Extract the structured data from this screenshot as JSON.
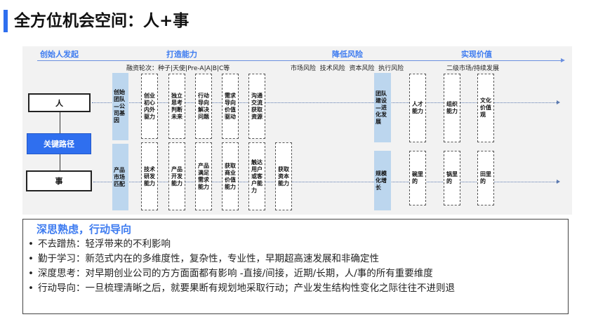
{
  "title": "全方位机会空间：人+事",
  "accent": "#2f6fef",
  "phases": [
    "创始人发起",
    "打造能力",
    "降低风险",
    "实现价值"
  ],
  "sublabels": {
    "financing": "融资轮次：种子|天使|Pre-A|A|B|C等",
    "risks": "市场风险  技术风险  资本风险  执行风险",
    "secondary": "二级市场/持续发展"
  },
  "nodes": {
    "person": "人",
    "key_path": "关键路径",
    "matter": "事"
  },
  "person_row": {
    "stage1": "创始团队—公司基因",
    "caps": [
      "创业初心内外驱力",
      "独立思考判断未来",
      "行动导向解决问题",
      "需求导向价值驱动",
      "沟通交流获取资源"
    ],
    "stage2": "团队建设—进化发展",
    "values": [
      "人才能力",
      "组织能力",
      "文化价值观"
    ]
  },
  "matter_row": {
    "stage1": "产品市场匹配",
    "caps": [
      "技术研发能力",
      "产品开发能力",
      "产品满足需求能力",
      "获取商业价值能力",
      "触达用户或客户能力",
      "获取资本能力"
    ],
    "stage2": "规模化增长",
    "values": [
      "碗里的",
      "锅里的",
      "田里的"
    ]
  },
  "summary": {
    "heading": "深思熟虑，行动导向",
    "bullets": [
      "不去蹭热：轻浮带来的不利影响",
      "勤于学习：新范式内在的多维度性，复杂性，专业性，早期超高速发展和非确定性",
      "深度思考：对早期创业公司的方方面面都有影响 -直接/间接，近期/长期，人/事的所有重要维度",
      "行动导向：一旦梳理清晰之后，就要果断有规划地采取行动；产业发生结构性变化之际往往不进则退"
    ]
  }
}
